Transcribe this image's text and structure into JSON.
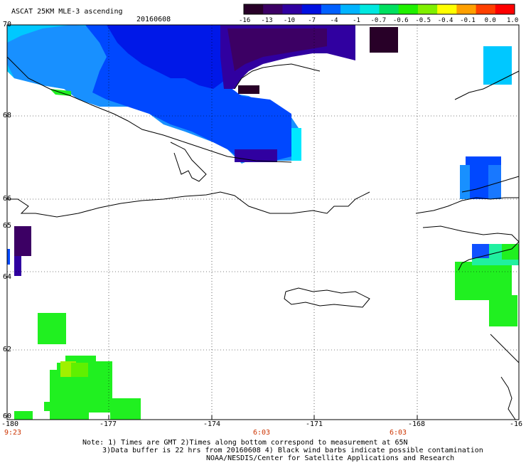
{
  "header": {
    "product_title": "ASCAT 25KM MLE-3 ascending",
    "date": "20160608"
  },
  "colorbar": {
    "ticks": [
      "-16",
      "-13",
      "-10",
      "-7",
      "-4",
      "-1",
      "-0.7",
      "-0.6",
      "-0.5",
      "-0.4",
      "-0.1",
      "0.0",
      "1.0"
    ],
    "colors": [
      "#280028",
      "#3c0064",
      "#3000a0",
      "#0010e0",
      "#0060ff",
      "#00b4ff",
      "#00e8e0",
      "#00e060",
      "#20f000",
      "#80f000",
      "#ffff00",
      "#ffa000",
      "#ff4000",
      "#ff0000"
    ]
  },
  "axes": {
    "lat_labels": [
      "70",
      "68",
      "66",
      "65",
      "64",
      "62",
      "60"
    ],
    "lon_labels": [
      "-180",
      "-177",
      "-174",
      "-171",
      "-168",
      "-16"
    ]
  },
  "time_labels": [
    "9:23",
    "6:03",
    "6:03"
  ],
  "footnote": {
    "line1": "Note: 1) Times are GMT 2)Times along bottom correspond to measurement at 65N",
    "line2": "3)Data buffer is 22 hrs from 20160608 4) Black wind barbs indicate possible contamination",
    "line3": "NOAA/NESDIS/Center for Satellite Applications and Research"
  },
  "legend_colors": {
    "very_low": "#280028",
    "low": "#3c0064",
    "dark_blue": "#0018e8",
    "blue": "#0048ff",
    "light_blue": "#1890ff",
    "cyan": "#00c8ff",
    "green": "#20f020",
    "yellow_green": "#a0f000"
  }
}
